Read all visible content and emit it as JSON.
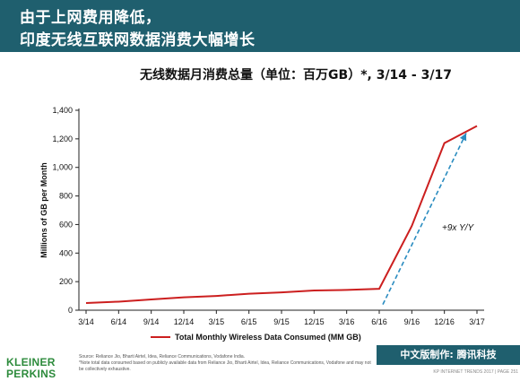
{
  "header": {
    "line1": "由于上网费用降低，",
    "line2": "印度无线互联网数据消费大幅增长"
  },
  "chart_data": {
    "type": "line",
    "title": "无线数据月消费总量（单位：百万GB）*, 3/14 - 3/17",
    "ylabel": "Millions of GB per Month",
    "xlabel": "",
    "ylim": [
      0,
      1400
    ],
    "yticks": [
      0,
      200,
      400,
      600,
      800,
      1000,
      1200,
      1400
    ],
    "ytick_labels": [
      "0",
      "200",
      "400",
      "600",
      "800",
      "1,000",
      "1,200",
      "1,400"
    ],
    "categories": [
      "3/14",
      "6/14",
      "9/14",
      "12/14",
      "3/15",
      "6/15",
      "9/15",
      "12/15",
      "3/16",
      "6/16",
      "9/16",
      "12/16",
      "3/17"
    ],
    "series": [
      {
        "name": "Total Monthly Wireless Data Consumed (MM GB)",
        "color": "#cc1f1f",
        "values": [
          50,
          60,
          75,
          90,
          100,
          115,
          125,
          138,
          142,
          150,
          590,
          1170,
          1290
        ]
      }
    ],
    "annotation": {
      "text": "+9x Y/Y",
      "arrow_from": [
        "6/16",
        40
      ],
      "arrow_to": [
        "3/17",
        1240
      ],
      "color": "#2a8cc0"
    },
    "legend_position": "bottom",
    "grid": false
  },
  "footer": {
    "logo_line1": "KLEINER",
    "logo_line2": "PERKINS",
    "source_line1": "Source: Reliance Jio, Bharti Airtel, Idea, Reliance Communications, Vodafone India.",
    "source_line2": "*Note total data consumed based on publicly available data from Reliance Jio, Bharti Airtel, Idea, Reliance Communications, Vodafone and may not be collectively exhaustive.",
    "badge_text": "中文版制作: 腾讯科技",
    "page_text": "KP INTERNET TRENDS 2017 | PAGE 251"
  }
}
